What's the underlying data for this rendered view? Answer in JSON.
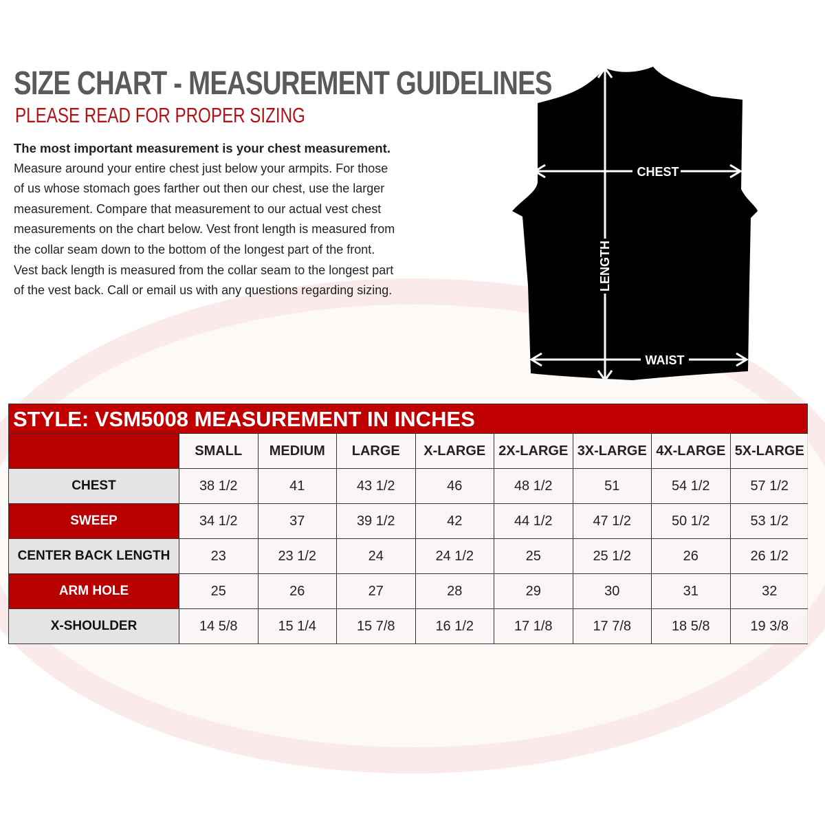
{
  "header": {
    "title": "SIZE CHART - MEASUREMENT GUIDELINES",
    "subtitle": "PLEASE READ FOR PROPER SIZING"
  },
  "intro": {
    "lead": "The most important measurement is your chest measurement.",
    "lines": [
      "Measure around your entire chest just below your armpits.  For those",
      "of us whose stomach goes farther out then our chest, use the larger",
      "measurement. Compare that measurement to our actual vest chest",
      "measurements on the chart below.  Vest front length is measured from",
      "the collar seam down to the bottom of the longest part of the front.",
      "Vest back length is measured from the collar seam to the longest part",
      "of the vest back.  Call or email us with any questions regarding sizing."
    ]
  },
  "diagram": {
    "chest": "CHEST",
    "length": "LENGTH",
    "waist": "WAIST"
  },
  "colors": {
    "accent_red": "#c00000",
    "title_gray": "#5a5a5a"
  },
  "table": {
    "title": "STYLE: VSM5008 MEASUREMENT IN INCHES",
    "sizes": [
      "SMALL",
      "MEDIUM",
      "LARGE",
      "X-LARGE",
      "2X-LARGE",
      "3X-LARGE",
      "4X-LARGE",
      "5X-LARGE"
    ],
    "rows": [
      {
        "label": "CHEST",
        "values": [
          "38 1/2",
          "41",
          "43 1/2",
          "46",
          "48 1/2",
          "51",
          "54 1/2",
          "57 1/2"
        ]
      },
      {
        "label": "SWEEP",
        "values": [
          "34 1/2",
          "37",
          "39 1/2",
          "42",
          "44 1/2",
          "47 1/2",
          "50 1/2",
          "53 1/2"
        ]
      },
      {
        "label": "CENTER BACK LENGTH",
        "values": [
          "23",
          "23 1/2",
          "24",
          "24 1/2",
          "25",
          "25 1/2",
          "26",
          "26 1/2"
        ]
      },
      {
        "label": "ARM HOLE",
        "values": [
          "25",
          "26",
          "27",
          "28",
          "29",
          "30",
          "31",
          "32"
        ]
      },
      {
        "label": "X-SHOULDER",
        "values": [
          "14 5/8",
          "15 1/4",
          "15 7/8",
          "16 1/2",
          "17 1/8",
          "17 7/8",
          "18 5/8",
          "19 3/8"
        ]
      }
    ]
  }
}
